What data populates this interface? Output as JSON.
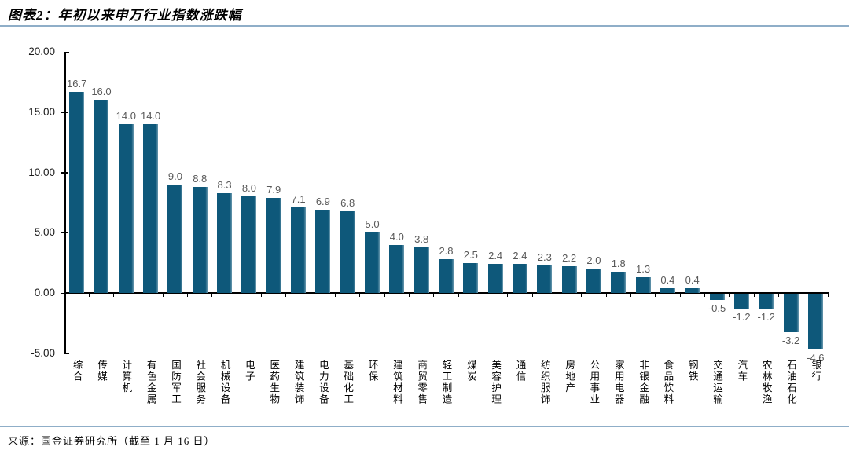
{
  "header": {
    "title": "图表2：年初以来申万行业指数涨跌幅"
  },
  "footer": {
    "source": "来源：国金证券研究所（截至 1 月 16 日）"
  },
  "colors": {
    "bar": "#0E587A",
    "bar_highlight": "#6C9BB0",
    "value_label": "#595959",
    "axis": "#000000",
    "separator": "#8FAEC8"
  },
  "chart_data": {
    "type": "bar",
    "title": "年初以来申万行业指数涨跌幅",
    "categories": [
      "综合",
      "传媒",
      "计算机",
      "有色金属",
      "国防军工",
      "社会服务",
      "机械设备",
      "电子",
      "医药生物",
      "建筑装饰",
      "电力设备",
      "基础化工",
      "环保",
      "建筑材料",
      "商贸零售",
      "轻工制造",
      "煤炭",
      "美容护理",
      "通信",
      "纺织服饰",
      "房地产",
      "公用事业",
      "家用电器",
      "非银金融",
      "食品饮料",
      "钢铁",
      "交通运输",
      "汽车",
      "农林牧渔",
      "石油石化",
      "银行"
    ],
    "values": [
      16.7,
      16.0,
      14.0,
      14.0,
      9.0,
      8.8,
      8.3,
      8.0,
      7.9,
      7.1,
      6.9,
      6.8,
      5.0,
      4.0,
      3.8,
      2.8,
      2.5,
      2.4,
      2.4,
      2.3,
      2.2,
      2.0,
      1.8,
      1.3,
      0.4,
      0.4,
      -0.5,
      -1.2,
      -1.2,
      -3.2,
      -4.6
    ],
    "value_labels": [
      "16.7",
      "16.0",
      "14.0",
      "14.0",
      "9.0",
      "8.8",
      "8.3",
      "8.0",
      "7.9",
      "7.1",
      "6.9",
      "6.8",
      "5.0",
      "4.0",
      "3.8",
      "2.8",
      "2.5",
      "2.4",
      "2.4",
      "2.3",
      "2.2",
      "2.0",
      "1.8",
      "1.3",
      "0.4",
      "0.4",
      "-0.5",
      "-1.2",
      "-1.2",
      "-3.2",
      "-4.6"
    ],
    "yticks": [
      20,
      15,
      10,
      5,
      0,
      -5
    ],
    "ytick_labels": [
      "20.00",
      "15.00",
      "10.00",
      "5.00",
      "0.00",
      "-5.00"
    ],
    "ylim": [
      -5,
      20
    ],
    "xlabel": "",
    "ylabel": "",
    "grid": false,
    "legend": null
  }
}
